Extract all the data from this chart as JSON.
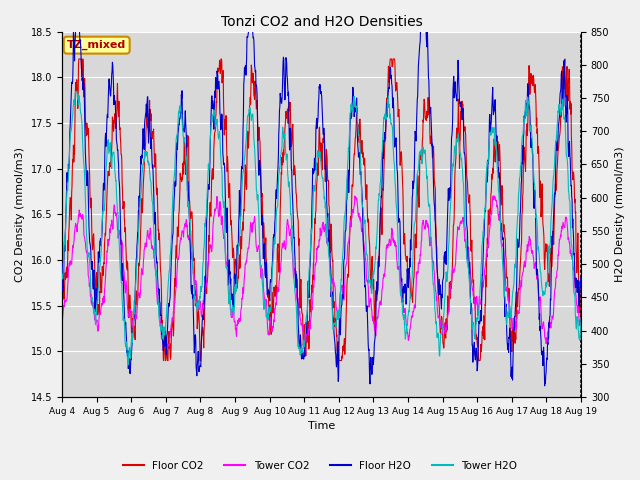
{
  "title": "Tonzi CO2 and H2O Densities",
  "xlabel": "Time",
  "ylabel_left": "CO2 Density (mmol/m3)",
  "ylabel_right": "H2O Density (mmol/m3)",
  "x_tick_labels": [
    "Aug 4",
    "Aug 5",
    "Aug 6",
    "Aug 7",
    "Aug 8",
    "Aug 9",
    "Aug 10",
    "Aug 11",
    "Aug 12",
    "Aug 13",
    "Aug 14",
    "Aug 15",
    "Aug 16",
    "Aug 17",
    "Aug 18",
    "Aug 19"
  ],
  "ylim_left": [
    14.5,
    18.5
  ],
  "ylim_right": [
    300,
    850
  ],
  "annotation_text": "TZ_mixed",
  "annotation_color": "#aa0000",
  "annotation_bg": "#ffff99",
  "annotation_border": "#cc8800",
  "colors": {
    "floor_co2": "#dd0000",
    "tower_co2": "#ff00ff",
    "floor_h2o": "#0000cc",
    "tower_h2o": "#00bbbb"
  },
  "legend_labels": [
    "Floor CO2",
    "Tower CO2",
    "Floor H2O",
    "Tower H2O"
  ],
  "bg_color": "#e8e8e8",
  "plot_bg": "#d8d8d8",
  "grid_color": "#ffffff",
  "n_days": 15,
  "seed": 7
}
